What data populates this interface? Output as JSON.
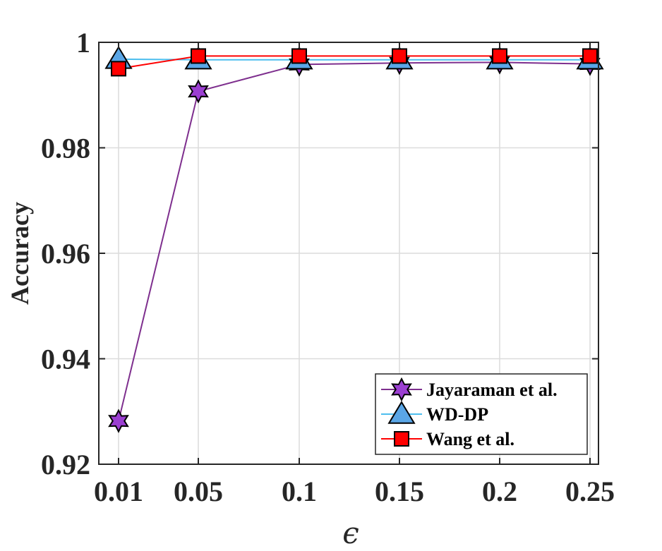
{
  "chart_data": {
    "type": "line",
    "categories": [
      "0.01",
      "0.05",
      "0.1",
      "0.15",
      "0.2",
      "0.25"
    ],
    "xlabel": "ϵ",
    "ylabel": "Accuracy",
    "ylim": [
      0.92,
      1.0
    ],
    "yticks": [
      "0.92",
      "0.94",
      "0.96",
      "0.98",
      "1"
    ],
    "grid": true,
    "legend_position": "bottom-right",
    "series": [
      {
        "name": "Jayaraman et al.",
        "color": "#7e2f8e",
        "marker_fill": "#9b3fd1",
        "marker": "hexagram",
        "values": [
          0.9282,
          0.9907,
          0.9958,
          0.9961,
          0.9962,
          0.9959
        ]
      },
      {
        "name": "WD-DP",
        "color": "#4dbeee",
        "marker_fill": "#5aa6e6",
        "marker": "triangle",
        "values": [
          0.9968,
          0.9967,
          0.9967,
          0.9967,
          0.9967,
          0.9967
        ]
      },
      {
        "name": "Wang et al.",
        "color": "#ff0000",
        "marker_fill": "#ff0000",
        "marker": "square",
        "values": [
          0.995,
          0.9974,
          0.9974,
          0.9974,
          0.9974,
          0.9974
        ]
      }
    ]
  }
}
